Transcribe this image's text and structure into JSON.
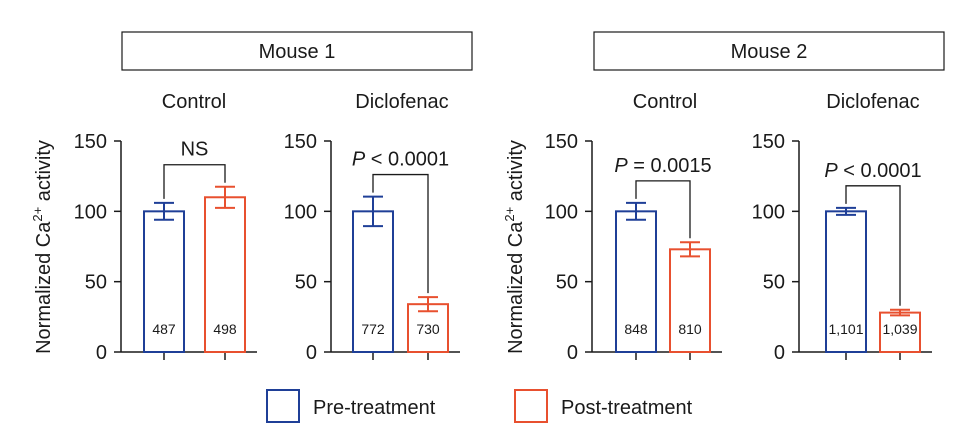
{
  "mice": [
    {
      "label": "Mouse 1",
      "panels": [
        {
          "title": "Control",
          "show_ylabel": true,
          "significance": {
            "text": "NS",
            "italic_p": false
          },
          "bars": [
            {
              "group": "Pre-treatment",
              "value": 100,
              "error": 6,
              "n": "487"
            },
            {
              "group": "Post-treatment",
              "value": 110,
              "error": 7.5,
              "n": "498"
            }
          ]
        },
        {
          "title": "Diclofenac",
          "show_ylabel": false,
          "significance": {
            "p": "P",
            "rest": " < 0.0001",
            "italic_p": true
          },
          "bars": [
            {
              "group": "Pre-treatment",
              "value": 100,
              "error": 10.5,
              "n": "772"
            },
            {
              "group": "Post-treatment",
              "value": 34,
              "error": 5,
              "n": "730"
            }
          ]
        }
      ]
    },
    {
      "label": "Mouse 2",
      "panels": [
        {
          "title": "Control",
          "show_ylabel": true,
          "significance": {
            "p": "P",
            "rest": " = 0.0015",
            "italic_p": true
          },
          "bars": [
            {
              "group": "Pre-treatment",
              "value": 100,
              "error": 6,
              "n": "848"
            },
            {
              "group": "Post-treatment",
              "value": 73,
              "error": 5,
              "n": "810"
            }
          ]
        },
        {
          "title": "Diclofenac",
          "show_ylabel": false,
          "significance": {
            "p": "P",
            "rest": " < 0.0001",
            "italic_p": true
          },
          "bars": [
            {
              "group": "Pre-treatment",
              "value": 100,
              "error": 2.5,
              "n": "1,101"
            },
            {
              "group": "Post-treatment",
              "value": 28,
              "error": 2,
              "n": "1,039"
            }
          ]
        }
      ]
    }
  ],
  "chart_data": {
    "type": "bar",
    "ylabel_main": "Normalized Ca",
    "ylabel_sup": "2+",
    "ylabel_tail": " activity",
    "ylim": [
      0,
      150
    ],
    "yticks": [
      0,
      50,
      100,
      150
    ],
    "series": [
      {
        "name": "Pre-treatment",
        "color": "#1f3f97"
      },
      {
        "name": "Post-treatment",
        "color": "#e8502f"
      }
    ],
    "panels": [
      {
        "mouse": "Mouse 1",
        "condition": "Control",
        "values": [
          100,
          110
        ],
        "errors": [
          6,
          7.5
        ],
        "n": [
          "487",
          "498"
        ],
        "significance": "NS"
      },
      {
        "mouse": "Mouse 1",
        "condition": "Diclofenac",
        "values": [
          100,
          34
        ],
        "errors": [
          10.5,
          5
        ],
        "n": [
          "772",
          "730"
        ],
        "significance": "P < 0.0001"
      },
      {
        "mouse": "Mouse 2",
        "condition": "Control",
        "values": [
          100,
          73
        ],
        "errors": [
          6,
          5
        ],
        "n": [
          "848",
          "810"
        ],
        "significance": "P = 0.0015"
      },
      {
        "mouse": "Mouse 2",
        "condition": "Diclofenac",
        "values": [
          100,
          28
        ],
        "errors": [
          2.5,
          2
        ],
        "n": [
          "1,101",
          "1,039"
        ],
        "significance": "P < 0.0001"
      }
    ]
  },
  "legend": [
    {
      "label": "Pre-treatment",
      "color": "#1f3f97"
    },
    {
      "label": "Post-treatment",
      "color": "#e8502f"
    }
  ]
}
